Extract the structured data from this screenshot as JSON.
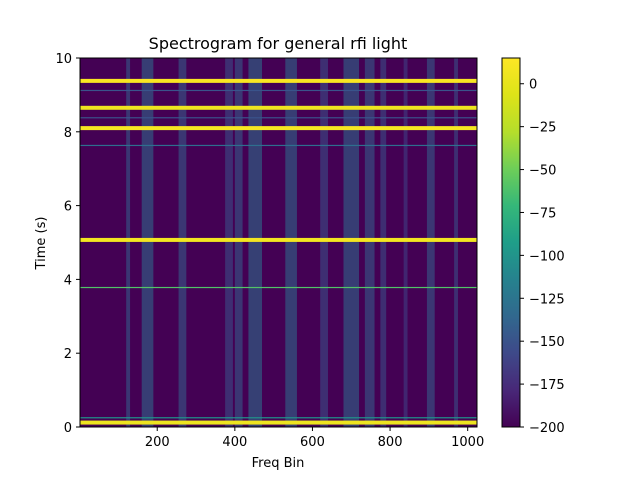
{
  "chart_data": {
    "type": "heatmap",
    "title": "Spectrogram for general rfi light",
    "xlabel": "Freq Bin",
    "ylabel": "Time (s)",
    "xlim": [
      1,
      1024
    ],
    "ylim": [
      0,
      10
    ],
    "x_ticks": [
      200,
      400,
      600,
      800,
      1000
    ],
    "y_ticks": [
      0,
      2,
      4,
      6,
      8,
      10
    ],
    "colormap": "viridis",
    "colorbar": {
      "vmin": -200,
      "vmax": 15,
      "ticks": [
        0,
        -25,
        -50,
        -75,
        -100,
        -125,
        -150,
        -175,
        -200
      ]
    },
    "background_level": -200,
    "horizontal_bands": [
      {
        "time": 0.12,
        "level": 5
      },
      {
        "time": 0.25,
        "level": -100
      },
      {
        "time": 3.78,
        "level": -60
      },
      {
        "time": 5.07,
        "level": 8
      },
      {
        "time": 7.63,
        "level": -130
      },
      {
        "time": 8.1,
        "level": 10
      },
      {
        "time": 8.38,
        "level": -150
      },
      {
        "time": 8.65,
        "level": 5
      },
      {
        "time": 9.12,
        "level": -150
      },
      {
        "time": 9.38,
        "level": 12
      }
    ],
    "active_freq_regions": [
      {
        "from": 120,
        "to": 130,
        "level": -140
      },
      {
        "from": 160,
        "to": 190,
        "level": -130
      },
      {
        "from": 255,
        "to": 275,
        "level": -140
      },
      {
        "from": 375,
        "to": 395,
        "level": -150
      },
      {
        "from": 400,
        "to": 420,
        "level": -140
      },
      {
        "from": 435,
        "to": 470,
        "level": -125
      },
      {
        "from": 530,
        "to": 560,
        "level": -130
      },
      {
        "from": 620,
        "to": 640,
        "level": -150
      },
      {
        "from": 680,
        "to": 720,
        "level": -130
      },
      {
        "from": 735,
        "to": 760,
        "level": -140
      },
      {
        "from": 775,
        "to": 790,
        "level": -150
      },
      {
        "from": 835,
        "to": 845,
        "level": -160
      },
      {
        "from": 895,
        "to": 915,
        "level": -140
      },
      {
        "from": 965,
        "to": 975,
        "level": -150
      }
    ]
  }
}
